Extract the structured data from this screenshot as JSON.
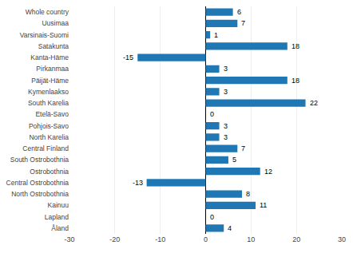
{
  "chart_data": {
    "type": "bar",
    "orientation": "horizontal",
    "categories": [
      "Whole country",
      "Uusimaa",
      "Varsinais-Suomi",
      "Satakunta",
      "Kanta-Häme",
      "Pirkanmaa",
      "Päijät-Häme",
      "Kymenlaakso",
      "South Karelia",
      "Etelä-Savo",
      "Pohjois-Savo",
      "North Karelia",
      "Central Finland",
      "South Ostrobothnia",
      "Ostrobothnia",
      "Central Ostrobothnia",
      "North Ostrobothnia",
      "Kainuu",
      "Lapland",
      "Åland"
    ],
    "values": [
      6,
      7,
      1,
      18,
      -15,
      3,
      18,
      3,
      22,
      0,
      3,
      3,
      7,
      5,
      12,
      -13,
      8,
      11,
      0,
      4
    ],
    "color": "#1f77b4",
    "xlim": [
      -30,
      30
    ],
    "xticks": [
      -30,
      -20,
      -10,
      0,
      10,
      20,
      30
    ],
    "grid": true,
    "data_labels": true
  }
}
